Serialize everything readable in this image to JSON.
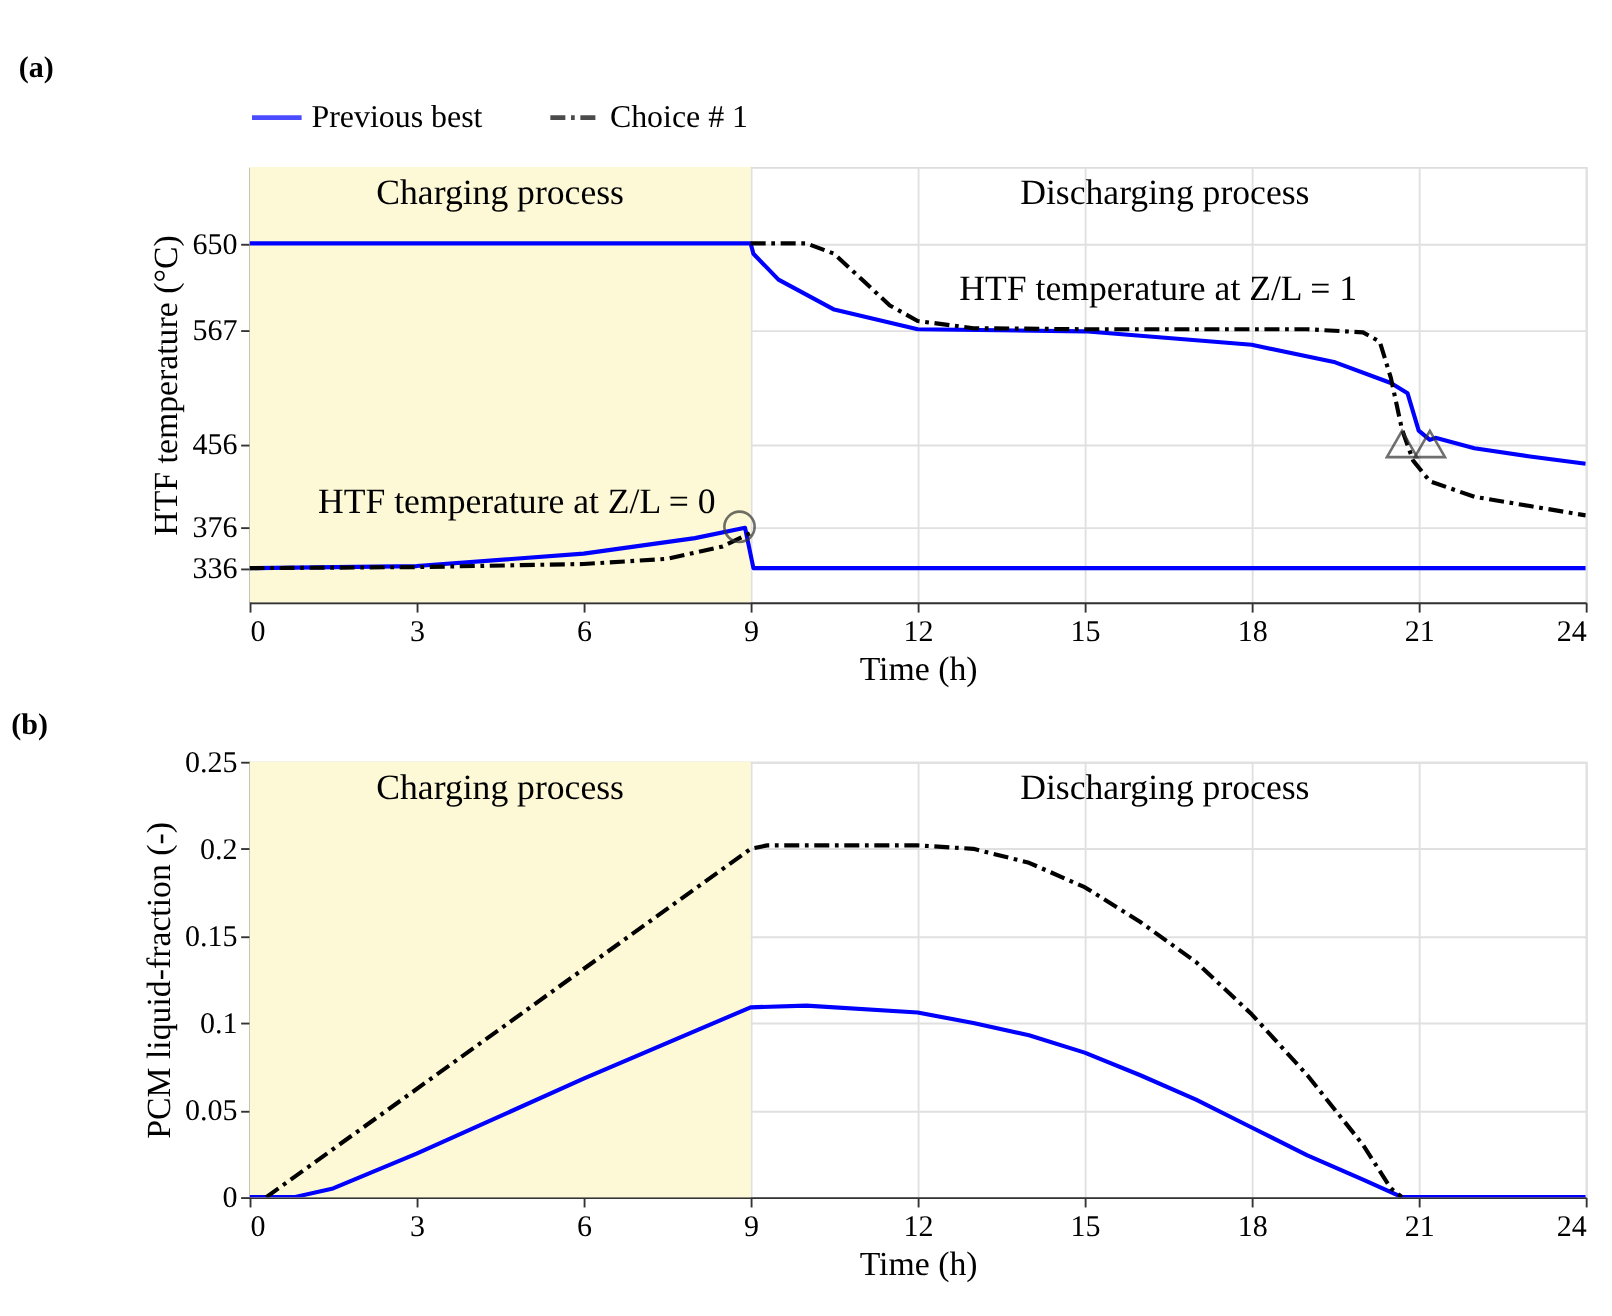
{
  "chart_data": [
    {
      "type": "line",
      "title": "(a)",
      "xlabel": "Time (h)",
      "ylabel": "HTF temperature (°C)",
      "xlim": [
        0,
        24
      ],
      "xticks": [
        0,
        3,
        6,
        9,
        12,
        15,
        18,
        21,
        24
      ],
      "ylim": [
        303,
        724
      ],
      "yticks": [
        336,
        376,
        456,
        567,
        650
      ],
      "grid": true,
      "legend": "top",
      "bands": [
        {
          "axis": "x",
          "from": 0,
          "to": 9,
          "label": "Charging process",
          "color": "#fdf9d6"
        }
      ],
      "annotations": [
        "Discharging process",
        "HTF temperature at Z/L = 1",
        "HTF temperature at Z/L = 0"
      ],
      "series": [
        {
          "name": "Previous best",
          "color": "#0000ff",
          "line_style": "solid",
          "x": [
            0,
            9,
            9.05,
            9.5,
            10.5,
            12,
            15,
            18,
            19.5,
            20.5,
            20.8,
            21.0,
            21.2,
            21.3,
            22,
            23,
            24
          ],
          "values": [
            650,
            650,
            640,
            615,
            586,
            567,
            565,
            552,
            535,
            515,
            505,
            469,
            460,
            462,
            452,
            444,
            437
          ]
        },
        {
          "color": "#0000ff",
          "line_style": "solid",
          "x": [
            0,
            3,
            6,
            8,
            8.9,
            9.05,
            24
          ],
          "values": [
            336,
            338,
            350,
            365,
            375,
            336,
            336
          ]
        },
        {
          "name": "Choice # 1",
          "color": "#000000",
          "line_style": "dashed",
          "x": [
            9,
            10,
            10.5,
            11,
            11.5,
            12,
            13,
            15,
            19,
            20,
            20.3,
            20.5,
            20.7,
            20.9,
            21.2,
            22,
            23,
            24
          ],
          "values": [
            650,
            650,
            640,
            615,
            590,
            575,
            568,
            567,
            567,
            564,
            555,
            520,
            470,
            440,
            420,
            405,
            396,
            387
          ]
        },
        {
          "color": "#000000",
          "line_style": "dashed",
          "x": [
            0,
            3,
            6,
            7.5,
            8.5,
            9
          ],
          "values": [
            336,
            337,
            340,
            345,
            357,
            370
          ]
        },
        {
          "type": "scatter",
          "marker": "circle",
          "color": "#333333",
          "x": [
            8.8
          ],
          "values": [
            376
          ]
        },
        {
          "type": "scatter",
          "marker": "triangle",
          "color": "#333333",
          "x": [
            20.7,
            21.2
          ],
          "values": [
            456,
            456
          ]
        }
      ]
    },
    {
      "type": "line",
      "title": "(b)",
      "xlabel": "Time (h)",
      "ylabel": "PCM liquid-fraction (-)",
      "xlim": [
        0,
        24
      ],
      "xticks": [
        0,
        3,
        6,
        9,
        12,
        15,
        18,
        21,
        24
      ],
      "ylim": [
        0,
        0.25
      ],
      "yticks": [
        0,
        0.05,
        0.1,
        0.15,
        0.2,
        0.25
      ],
      "grid": true,
      "bands": [
        {
          "axis": "x",
          "from": 0,
          "to": 9,
          "label": "Charging process",
          "color": "#fdf9d6"
        }
      ],
      "annotations": [
        "Discharging process"
      ],
      "series": [
        {
          "color": "#0000ff",
          "line_style": "solid",
          "x": [
            0,
            0.8,
            1.5,
            3,
            6,
            9,
            10,
            12,
            13,
            14,
            15,
            16,
            17,
            18,
            19,
            20,
            20.7,
            24
          ],
          "values": [
            0,
            0,
            0.005,
            0.025,
            0.068,
            0.109,
            0.11,
            0.106,
            0.1,
            0.093,
            0.083,
            0.07,
            0.056,
            0.04,
            0.024,
            0.01,
            0,
            0
          ]
        },
        {
          "color": "#000000",
          "line_style": "dashed",
          "x": [
            0.3,
            9,
            9.3,
            12,
            13,
            14,
            15,
            16,
            17,
            18,
            19,
            20,
            20.5,
            20.7
          ],
          "values": [
            0,
            0.2,
            0.202,
            0.202,
            0.2,
            0.192,
            0.178,
            0.158,
            0.135,
            0.105,
            0.07,
            0.03,
            0.005,
            0
          ]
        }
      ]
    }
  ]
}
